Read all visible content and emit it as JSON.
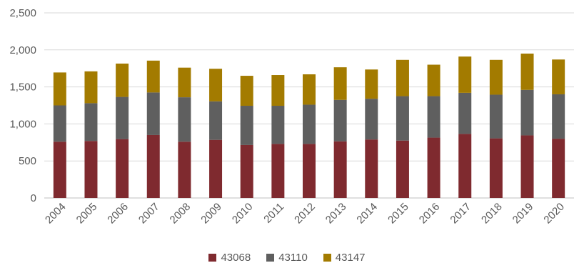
{
  "chart_data": {
    "type": "bar",
    "stacked": true,
    "categories": [
      "2004",
      "2005",
      "2006",
      "2007",
      "2008",
      "2009",
      "2010",
      "2011",
      "2012",
      "2013",
      "2014",
      "2015",
      "2016",
      "2017",
      "2018",
      "2019",
      "2020"
    ],
    "series": [
      {
        "name": "43068",
        "color": "#7f2a2f",
        "values": [
          760,
          770,
          795,
          850,
          760,
          785,
          715,
          730,
          730,
          765,
          790,
          775,
          815,
          865,
          805,
          845,
          800
        ]
      },
      {
        "name": "43110",
        "color": "#5f5f5f",
        "values": [
          490,
          510,
          570,
          575,
          600,
          520,
          530,
          515,
          530,
          560,
          550,
          600,
          560,
          555,
          590,
          615,
          600
        ]
      },
      {
        "name": "43147",
        "color": "#a37b00",
        "values": [
          445,
          430,
          450,
          430,
          400,
          440,
          405,
          415,
          410,
          440,
          395,
          490,
          425,
          490,
          470,
          490,
          470
        ]
      }
    ],
    "yticks": [
      "0",
      "500",
      "1,000",
      "1,500",
      "2,000",
      "2,500"
    ],
    "ylim": [
      0,
      2500
    ],
    "grid": true,
    "legend_position": "bottom"
  }
}
